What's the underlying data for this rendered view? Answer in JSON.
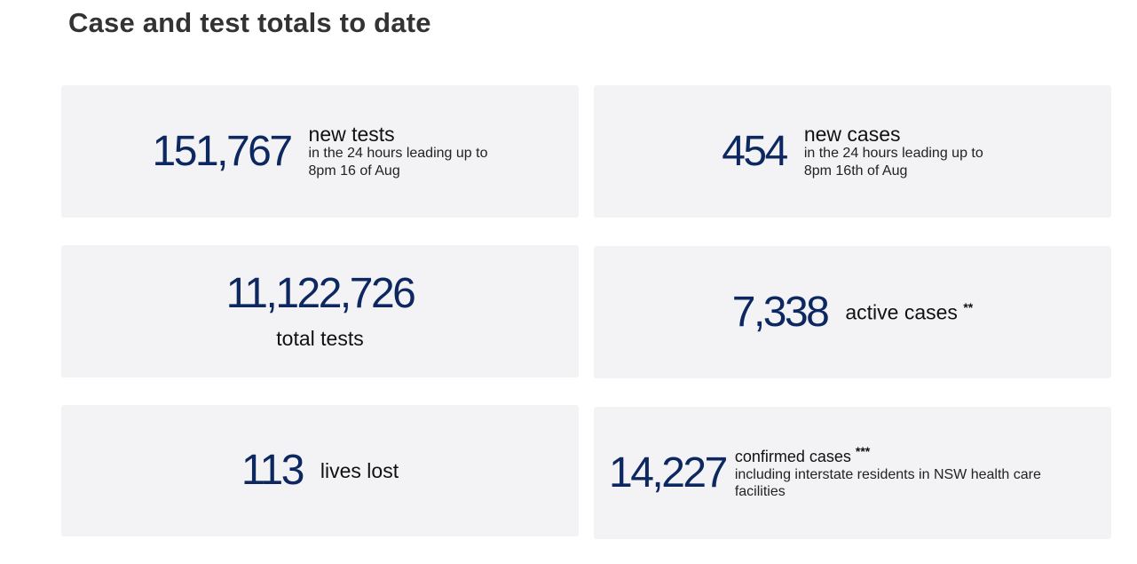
{
  "title": "Case and test totals to date",
  "colors": {
    "number": "#0d2860",
    "card_bg": "#f3f3f6"
  },
  "cards": {
    "new_tests": {
      "value": "151,767",
      "label": "new tests",
      "sub1": "in the 24 hours leading up to",
      "sub2": "8pm 16 of Aug"
    },
    "new_cases": {
      "value": "454",
      "label": "new cases",
      "sub1": "in the 24 hours leading up to",
      "sub2": "8pm 16th of Aug"
    },
    "total_tests": {
      "value": "11,122,726",
      "label": "total tests"
    },
    "active_cases": {
      "value": "7,338",
      "label": "active cases",
      "mark": "**"
    },
    "lives_lost": {
      "value": "113",
      "label": "lives lost"
    },
    "confirmed_cases": {
      "value": "14,227",
      "label": "confirmed cases",
      "mark": "***",
      "sub1": "including interstate residents in NSW health care",
      "sub2": "facilities"
    }
  }
}
